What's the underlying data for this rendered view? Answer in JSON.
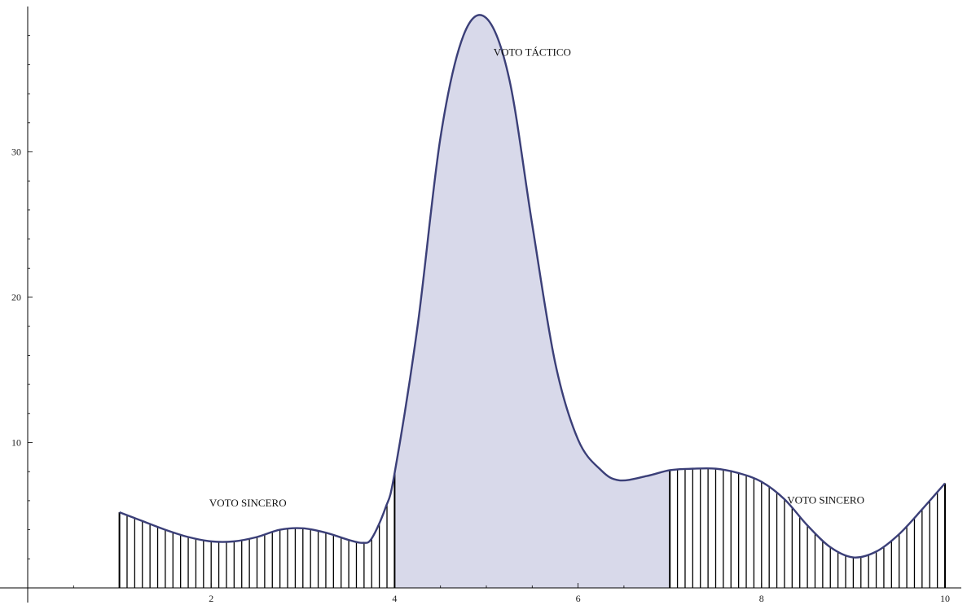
{
  "chart_data": {
    "type": "area",
    "title": "",
    "xlabel": "",
    "ylabel": "",
    "xlim": [
      0.0,
      10.2
    ],
    "ylim": [
      0,
      39.5
    ],
    "x_ticks": [
      2,
      4,
      6,
      8,
      10
    ],
    "y_ticks": [
      10,
      20,
      30
    ],
    "x_tick_labels": [
      "2",
      "4",
      "6",
      "8",
      "10"
    ],
    "y_tick_labels": [
      "10",
      "20",
      "30"
    ],
    "curve": {
      "x": [
        1.0,
        1.25,
        1.5,
        1.75,
        2.0,
        2.25,
        2.5,
        2.75,
        3.0,
        3.25,
        3.5,
        3.65,
        3.75,
        3.9,
        4.0,
        4.25,
        4.5,
        4.75,
        5.0,
        5.25,
        5.5,
        5.75,
        6.0,
        6.25,
        6.45,
        6.75,
        7.0,
        7.25,
        7.5,
        7.75,
        8.0,
        8.25,
        8.5,
        8.75,
        9.0,
        9.25,
        9.5,
        9.75,
        10.0
      ],
      "y": [
        5.2,
        4.6,
        4.0,
        3.5,
        3.2,
        3.2,
        3.5,
        4.0,
        4.1,
        3.8,
        3.3,
        3.1,
        3.4,
        5.5,
        7.9,
        18.0,
        31.0,
        38.0,
        39.2,
        35.0,
        25.0,
        15.5,
        10.2,
        8.1,
        7.4,
        7.7,
        8.1,
        8.2,
        8.2,
        7.9,
        7.3,
        6.1,
        4.3,
        2.8,
        2.1,
        2.5,
        3.7,
        5.4,
        7.2
      ]
    },
    "regions": [
      {
        "label": "VOTO SINCERO",
        "x_from": 1,
        "x_to": 4,
        "fill": "hatched"
      },
      {
        "label": "VOTO TÁCTICO",
        "x_from": 4,
        "x_to": 7,
        "fill": "solid"
      },
      {
        "label": "VOTO SINCERO",
        "x_from": 7,
        "x_to": 10,
        "fill": "hatched"
      }
    ],
    "annotations": [
      {
        "text": "VOTO SINCERO",
        "x": 2.4,
        "y": 5.6
      },
      {
        "text": "VOTO TÁCTICO",
        "x": 5.5,
        "y": 36.6
      },
      {
        "text": "VOTO SINCERO",
        "x": 8.7,
        "y": 5.8
      }
    ],
    "colors": {
      "line": "#3b3f78",
      "fill": "#d8d9ea",
      "hatch": "#000000",
      "axis": "#000000"
    }
  }
}
